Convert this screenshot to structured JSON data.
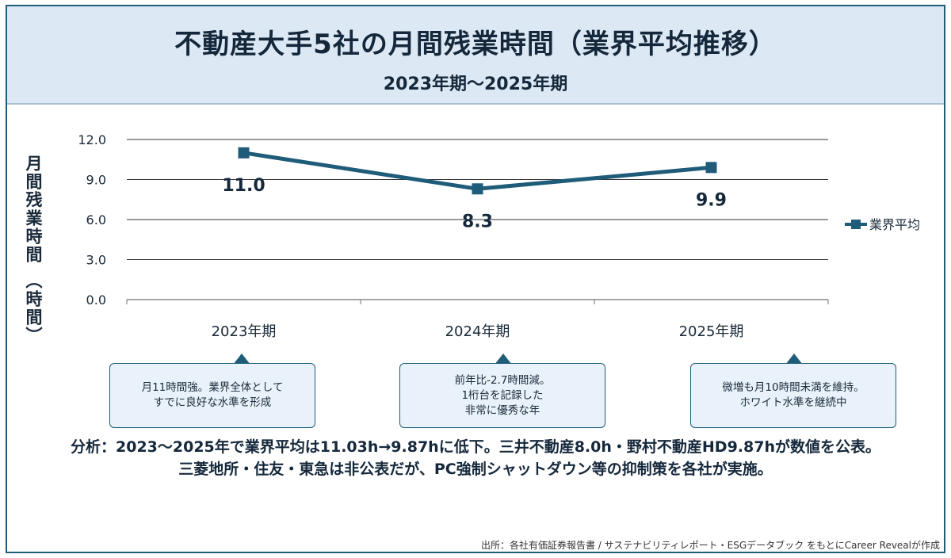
{
  "title": "不動産大手5社の月間残業時間（業界平均推移）",
  "subtitle": "2023年期〜2025年期",
  "chart_data": {
    "type": "line",
    "categories": [
      "2023年期",
      "2024年期",
      "2025年期"
    ],
    "series": [
      {
        "name": "業界平均",
        "values": [
          11.0,
          8.3,
          9.9
        ],
        "color": "#1f5c7a"
      }
    ],
    "data_labels": [
      "11.0",
      "8.3",
      "9.9"
    ],
    "ylabel_main": "月間残業時間",
    "ylabel_unit": "（時間）",
    "ylim": [
      0,
      12
    ],
    "yticks": [
      "0.0",
      "3.0",
      "6.0",
      "9.0",
      "12.0"
    ],
    "grid": true,
    "legend_position": "right"
  },
  "callouts": [
    {
      "text": "月11時間強。業界全体として\nすでに良好な水準を形成"
    },
    {
      "text": "前年比-2.7時間減。\n1桁台を記録した\n非常に優秀な年"
    },
    {
      "text": "微増も月10時間未満を維持。\nホワイト水準を継続中"
    }
  ],
  "analysis": {
    "line1": "分析：2023〜2025年で業界平均は11.03h→9.87hに低下。三井不動産8.0h・野村不動産HD9.87hが数値を公表。",
    "line2": "三菱地所・住友・東急は非公表だが、PC強制シャットダウン等の抑制策を各社が実施。"
  },
  "source": "出所：各社有価証券報告書 / サステナビリティレポート・ESGデータブック をもとにCareer Revealが作成",
  "colors": {
    "accent": "#1f5c7a",
    "header_bg": "#dce8f3",
    "callout_bg": "#e9f2fa"
  }
}
